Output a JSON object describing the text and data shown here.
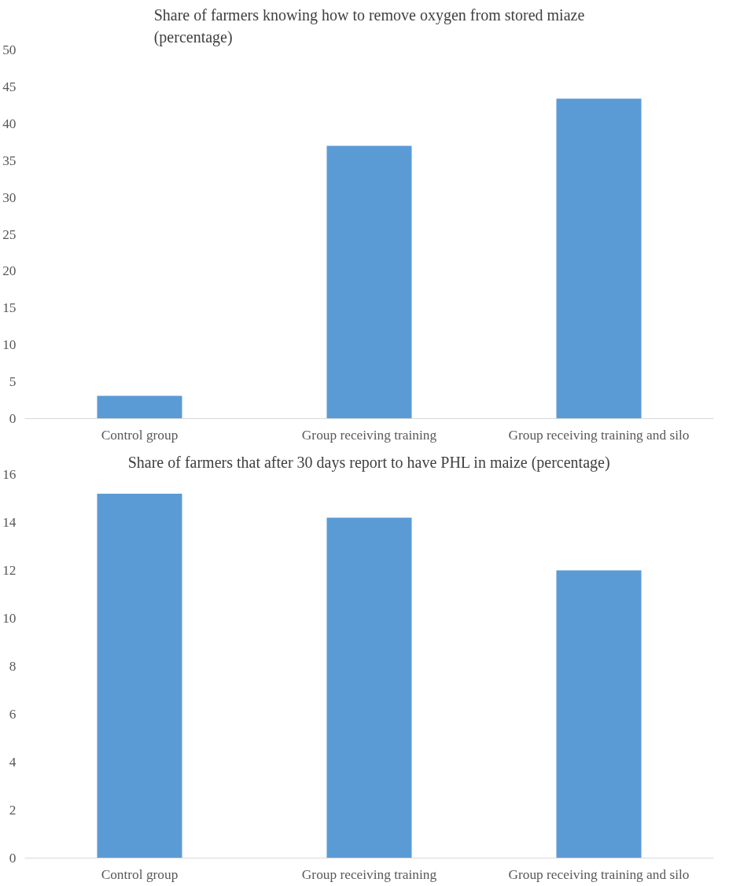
{
  "chart_data": [
    {
      "type": "bar",
      "title": "Share of farmers knowing how to remove oxygen from stored miaze\n(percentage)",
      "categories": [
        "Control group",
        "Group receiving training",
        "Group receiving training and silo"
      ],
      "values": [
        3.1,
        37.0,
        43.4
      ],
      "color": "#5b9bd5",
      "ylim": [
        0,
        50
      ],
      "yticks": [
        0,
        5,
        10,
        15,
        20,
        25,
        30,
        35,
        40,
        45,
        50
      ],
      "grid": false
    },
    {
      "type": "bar",
      "title": "Share of farmers that after 30 days report to have PHL in maize (percentage)",
      "categories": [
        "Control group",
        "Group receiving training",
        "Group receiving training and silo"
      ],
      "values": [
        15.2,
        14.2,
        12.0
      ],
      "color": "#5b9bd5",
      "ylim": [
        0,
        16
      ],
      "yticks": [
        0,
        2,
        4,
        6,
        8,
        10,
        12,
        14,
        16
      ],
      "grid": false
    }
  ]
}
